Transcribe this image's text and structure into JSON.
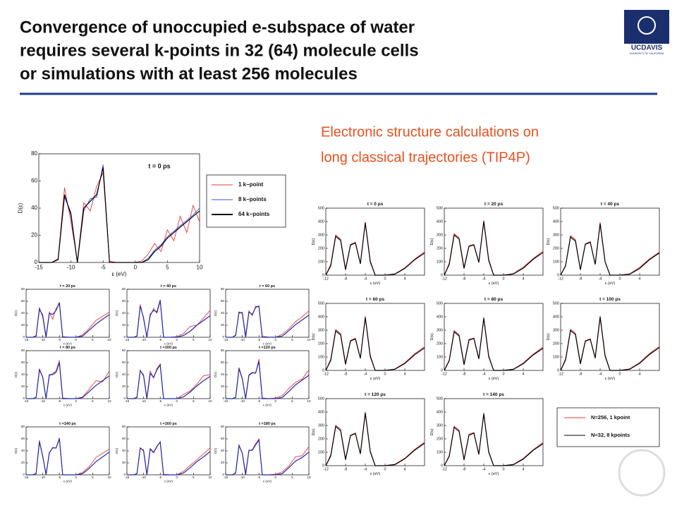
{
  "title_lines": [
    "Convergence of unoccupied e-subspace of water",
    "requires several k-points in 32 (64) molecule cells",
    "or simulations with at least 256 molecules"
  ],
  "logo": "UCDAVIS",
  "logo_caption": "UNIVERSITY OF CALIFORNIA",
  "subtitle_lines": [
    "Electronic structure calculations on",
    "long classical trajectories (TIP4P)"
  ],
  "main_plot": {
    "type": "line",
    "annotation": "t = 0 ps",
    "xlabel": "ε (eV)",
    "ylabel": "D(ε)",
    "x": [
      -15,
      -14,
      -13,
      -12,
      -11,
      -10,
      -9,
      -8,
      -7,
      -6,
      -5,
      -4,
      -3,
      -2,
      -1,
      0,
      1,
      2,
      3,
      4,
      5,
      6,
      7,
      8,
      9,
      10
    ],
    "xlim": [
      -15,
      10
    ],
    "ylim": [
      0,
      80
    ],
    "xticks": [
      -15,
      -10,
      -5,
      0,
      5,
      10
    ],
    "yticks": [
      0,
      20,
      40,
      60,
      80
    ],
    "series": [
      {
        "name": "1 k−point",
        "color": "#e83a3a",
        "values": [
          0,
          0,
          0,
          3,
          55,
          30,
          1,
          44,
          38,
          56,
          66,
          1,
          0,
          0,
          0,
          0,
          1,
          6,
          14,
          8,
          24,
          16,
          34,
          22,
          42,
          30
        ]
      },
      {
        "name": "8 k−points",
        "color": "#3b4cf0",
        "values": [
          0,
          0,
          0,
          2,
          48,
          37,
          0,
          38,
          47,
          48,
          72,
          0,
          0,
          0,
          0,
          0,
          0,
          3,
          9,
          13,
          19,
          23,
          27,
          31,
          35,
          40
        ]
      },
      {
        "name": "64 k−points",
        "color": "#000000",
        "values": [
          0,
          0,
          0,
          2,
          50,
          35,
          0,
          40,
          45,
          50,
          70,
          0,
          0,
          0,
          0,
          0,
          0,
          2,
          8,
          12,
          18,
          22,
          26,
          30,
          34,
          38
        ]
      }
    ]
  },
  "left_panels": {
    "type": "line",
    "xlabel": "ε (eV)",
    "ylabel": "D(ε)",
    "x": [
      -15,
      -13,
      -12,
      -11,
      -10,
      -9,
      -8,
      -7,
      -6,
      -5,
      -4,
      -2,
      0,
      2,
      4,
      6,
      8,
      10
    ],
    "xlim": [
      -15,
      10
    ],
    "ylim": [
      0,
      80
    ],
    "xticks": [
      -15,
      -10,
      -5,
      0,
      5,
      10
    ],
    "yticks": [
      0,
      20,
      40,
      60,
      80
    ],
    "series": [
      {
        "color": "#e83a3a"
      },
      {
        "color": "#1f2aa8"
      }
    ],
    "panels": [
      {
        "title": "t = 20 ps",
        "values": [
          [
            0,
            0,
            3,
            45,
            38,
            2,
            42,
            30,
            48,
            55,
            1,
            0,
            0,
            4,
            15,
            28,
            35,
            42
          ],
          [
            0,
            0,
            2,
            48,
            35,
            0,
            40,
            38,
            45,
            58,
            0,
            0,
            0,
            2,
            12,
            22,
            30,
            38
          ]
        ]
      },
      {
        "title": "t = 40 ps",
        "values": [
          [
            0,
            0,
            2,
            55,
            30,
            1,
            35,
            48,
            40,
            60,
            0,
            0,
            1,
            6,
            18,
            20,
            32,
            45
          ],
          [
            0,
            0,
            2,
            52,
            32,
            0,
            38,
            45,
            42,
            62,
            0,
            0,
            0,
            3,
            10,
            20,
            28,
            36
          ]
        ]
      },
      {
        "title": "t = 60 ps",
        "values": [
          [
            0,
            0,
            4,
            40,
            42,
            3,
            44,
            36,
            52,
            50,
            2,
            0,
            0,
            5,
            14,
            26,
            34,
            44
          ],
          [
            0,
            0,
            3,
            42,
            40,
            0,
            42,
            38,
            50,
            52,
            0,
            0,
            0,
            2,
            11,
            21,
            29,
            37
          ]
        ]
      },
      {
        "title": "t = 80 ps",
        "values": [
          [
            0,
            0,
            2,
            50,
            36,
            1,
            38,
            42,
            46,
            64,
            1,
            0,
            0,
            3,
            16,
            30,
            28,
            46
          ],
          [
            0,
            0,
            2,
            48,
            36,
            0,
            40,
            40,
            44,
            60,
            0,
            0,
            0,
            2,
            12,
            22,
            30,
            38
          ]
        ]
      },
      {
        "title": "t =100 ps",
        "values": [
          [
            0,
            0,
            3,
            46,
            40,
            2,
            46,
            34,
            50,
            58,
            0,
            0,
            0,
            7,
            13,
            24,
            38,
            40
          ],
          [
            0,
            0,
            2,
            47,
            38,
            0,
            42,
            36,
            48,
            56,
            0,
            0,
            0,
            3,
            11,
            21,
            30,
            37
          ]
        ]
      },
      {
        "title": "t =120 ps",
        "values": [
          [
            0,
            0,
            2,
            52,
            34,
            1,
            40,
            44,
            42,
            66,
            1,
            0,
            1,
            5,
            17,
            27,
            33,
            48
          ],
          [
            0,
            0,
            2,
            50,
            33,
            0,
            39,
            43,
            43,
            62,
            0,
            0,
            0,
            2,
            12,
            23,
            31,
            39
          ]
        ]
      },
      {
        "title": "t =140 ps",
        "values": [
          [
            0,
            0,
            3,
            58,
            30,
            2,
            36,
            46,
            44,
            62,
            0,
            0,
            0,
            4,
            14,
            29,
            36,
            43
          ],
          [
            0,
            0,
            2,
            55,
            31,
            0,
            37,
            45,
            45,
            60,
            0,
            0,
            0,
            2,
            11,
            22,
            30,
            38
          ]
        ]
      },
      {
        "title": "t =160 ps",
        "values": [
          [
            0,
            0,
            2,
            44,
            42,
            1,
            44,
            38,
            48,
            54,
            1,
            0,
            0,
            6,
            16,
            25,
            35,
            45
          ],
          [
            0,
            0,
            2,
            45,
            40,
            0,
            43,
            37,
            47,
            55,
            0,
            0,
            0,
            3,
            12,
            22,
            30,
            39
          ]
        ]
      },
      {
        "title": "t =180 ps",
        "values": [
          [
            0,
            0,
            4,
            50,
            36,
            3,
            40,
            42,
            52,
            60,
            0,
            0,
            1,
            5,
            15,
            30,
            32,
            47
          ],
          [
            0,
            0,
            3,
            49,
            36,
            0,
            41,
            41,
            50,
            58,
            0,
            0,
            0,
            2,
            12,
            23,
            29,
            38
          ]
        ]
      }
    ]
  },
  "right_panels": {
    "type": "line",
    "xlabel": "ε (eV)",
    "ylabel": "D(ε)",
    "x": [
      -12,
      -11,
      -10,
      -9,
      -8,
      -7,
      -6,
      -5,
      -4,
      -3,
      -2,
      0,
      2,
      4,
      6,
      8
    ],
    "xlim": [
      -12,
      8
    ],
    "ylim": [
      0,
      500
    ],
    "xticks": [
      -12,
      -8,
      -4,
      0,
      4
    ],
    "yticks": [
      0,
      100,
      200,
      300,
      400,
      500
    ],
    "series": [
      {
        "name": "N=256, 1 kpoint",
        "color": "#e83a3a"
      },
      {
        "name": "N=32, 8 kpoints",
        "color": "#000000"
      }
    ],
    "panels": [
      {
        "title": "t = 0 ps",
        "values": [
          [
            0,
            80,
            300,
            270,
            50,
            230,
            245,
            90,
            400,
            110,
            0,
            0,
            10,
            55,
            120,
            175
          ],
          [
            0,
            70,
            290,
            260,
            40,
            225,
            240,
            85,
            390,
            100,
            0,
            0,
            8,
            50,
            115,
            165
          ]
        ]
      },
      {
        "title": "t = 20 ps",
        "values": [
          [
            0,
            90,
            310,
            280,
            60,
            220,
            230,
            100,
            410,
            120,
            0,
            0,
            12,
            60,
            125,
            180
          ],
          [
            0,
            80,
            300,
            270,
            50,
            215,
            225,
            95,
            400,
            110,
            0,
            0,
            9,
            52,
            118,
            170
          ]
        ]
      },
      {
        "title": "t = 40 ps",
        "values": [
          [
            0,
            75,
            295,
            265,
            45,
            235,
            250,
            85,
            395,
            105,
            0,
            0,
            10,
            58,
            122,
            172
          ],
          [
            0,
            70,
            285,
            255,
            40,
            230,
            245,
            80,
            385,
            100,
            0,
            0,
            8,
            50,
            116,
            166
          ]
        ]
      },
      {
        "title": "t = 60 ps",
        "values": [
          [
            0,
            85,
            305,
            275,
            55,
            225,
            240,
            95,
            405,
            115,
            0,
            0,
            11,
            57,
            124,
            178
          ],
          [
            0,
            75,
            295,
            265,
            45,
            220,
            235,
            90,
            395,
            105,
            0,
            0,
            9,
            51,
            117,
            168
          ]
        ]
      },
      {
        "title": "t = 80 ps",
        "values": [
          [
            0,
            78,
            298,
            268,
            52,
            232,
            242,
            92,
            398,
            112,
            0,
            0,
            10,
            56,
            121,
            174
          ],
          [
            0,
            72,
            288,
            258,
            42,
            226,
            238,
            86,
            388,
            102,
            0,
            0,
            8,
            50,
            115,
            165
          ]
        ]
      },
      {
        "title": "t = 100 ps",
        "values": [
          [
            0,
            88,
            308,
            278,
            58,
            222,
            236,
            98,
            408,
            118,
            0,
            0,
            12,
            59,
            126,
            180
          ],
          [
            0,
            78,
            298,
            268,
            48,
            218,
            232,
            92,
            398,
            108,
            0,
            0,
            9,
            53,
            119,
            171
          ]
        ]
      },
      {
        "title": "t = 120 ps",
        "values": [
          [
            0,
            82,
            302,
            272,
            52,
            228,
            244,
            92,
            402,
            112,
            0,
            0,
            11,
            56,
            121,
            176
          ],
          [
            0,
            72,
            292,
            262,
            44,
            224,
            240,
            88,
            392,
            104,
            0,
            0,
            8,
            51,
            116,
            167
          ]
        ]
      },
      {
        "title": "t = 140 ps",
        "values": [
          [
            0,
            76,
            296,
            266,
            48,
            234,
            248,
            88,
            396,
            108,
            0,
            0,
            10,
            54,
            119,
            173
          ],
          [
            0,
            70,
            286,
            256,
            42,
            228,
            242,
            84,
            386,
            100,
            0,
            0,
            8,
            49,
            114,
            164
          ]
        ]
      }
    ]
  }
}
